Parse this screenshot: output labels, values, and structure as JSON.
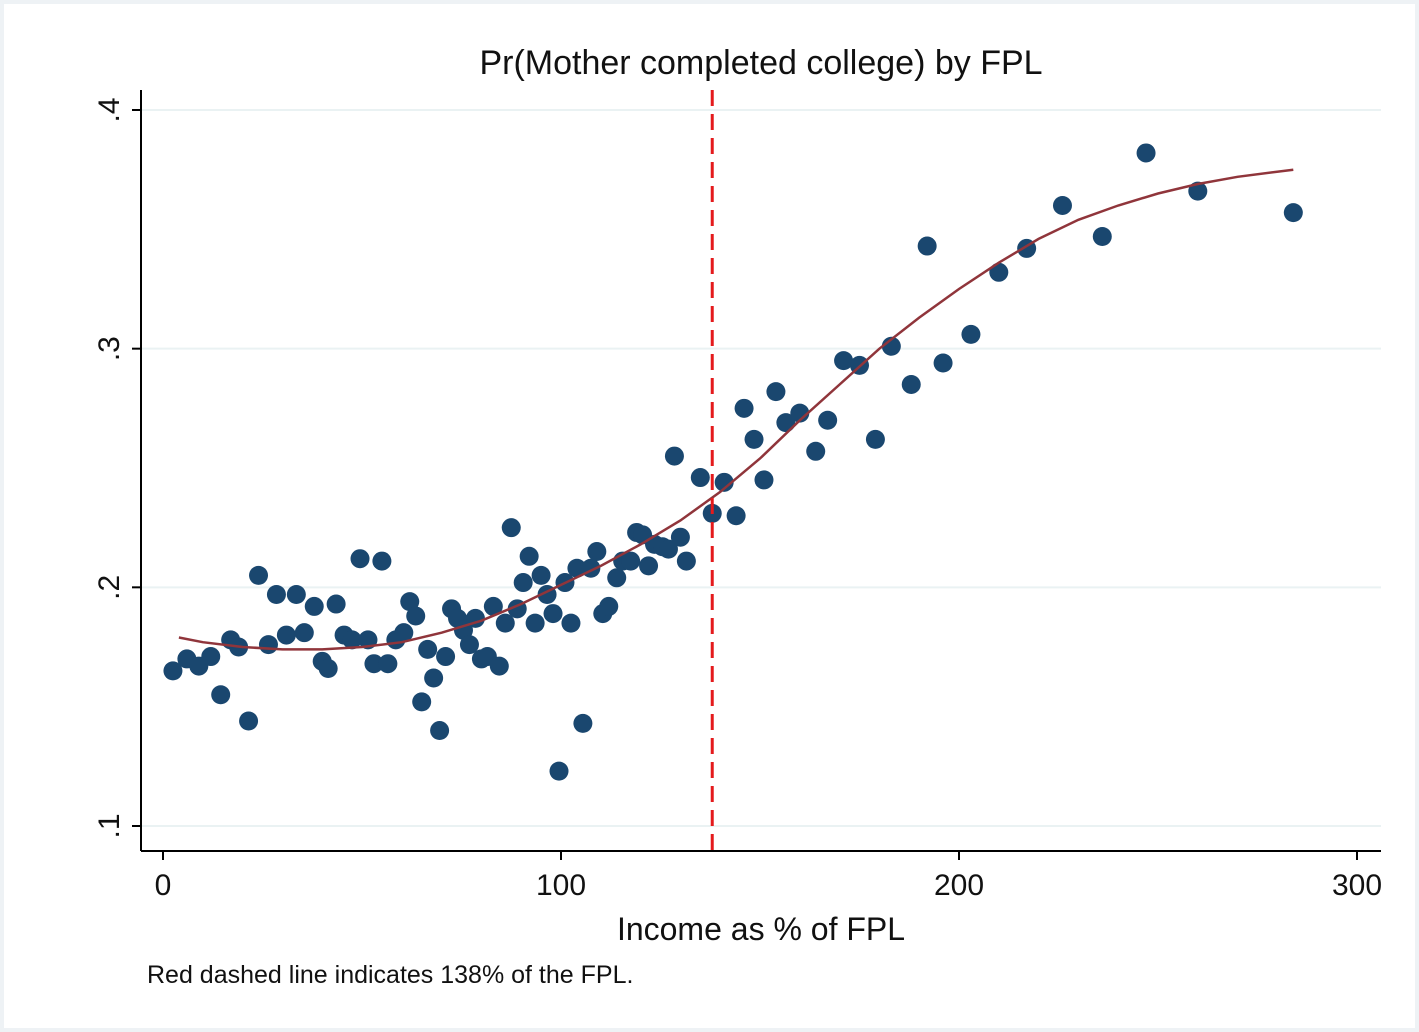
{
  "chart_data": {
    "type": "scatter",
    "title": "Pr(Mother completed college) by FPL",
    "xlabel": "Income as % of FPL",
    "ylabel": "",
    "note": "Red dashed line indicates 138% of the FPL.",
    "xlim": [
      0,
      300
    ],
    "ylim": [
      0.1,
      0.4
    ],
    "x_ticks": [
      {
        "value": 0,
        "label": "0"
      },
      {
        "value": 100,
        "label": "100"
      },
      {
        "value": 200,
        "label": "200"
      },
      {
        "value": 300,
        "label": "300"
      }
    ],
    "y_ticks": [
      {
        "value": 0.1,
        "label": ".1"
      },
      {
        "value": 0.2,
        "label": ".2"
      },
      {
        "value": 0.3,
        "label": ".3"
      },
      {
        "value": 0.4,
        "label": ".4"
      }
    ],
    "grid": "horizontal",
    "vline": {
      "x": 138,
      "color": "#e41a1c",
      "style": "dashed"
    },
    "colors": {
      "points": "#1a476f",
      "fit_line": "#90353b",
      "vline": "#e41a1c",
      "grid": "#eaf2f3"
    },
    "series": [
      {
        "kind": "points",
        "points": [
          [
            2.5,
            0.165
          ],
          [
            6,
            0.17
          ],
          [
            9,
            0.167
          ],
          [
            12,
            0.171
          ],
          [
            14.5,
            0.155
          ],
          [
            17,
            0.178
          ],
          [
            19,
            0.175
          ],
          [
            21.5,
            0.144
          ],
          [
            24,
            0.205
          ],
          [
            26.5,
            0.176
          ],
          [
            28.5,
            0.197
          ],
          [
            31,
            0.18
          ],
          [
            33.5,
            0.197
          ],
          [
            35.5,
            0.181
          ],
          [
            38,
            0.192
          ],
          [
            40,
            0.169
          ],
          [
            41.5,
            0.166
          ],
          [
            43.5,
            0.193
          ],
          [
            45.5,
            0.18
          ],
          [
            47.5,
            0.178
          ],
          [
            49.5,
            0.212
          ],
          [
            51.5,
            0.178
          ],
          [
            53,
            0.168
          ],
          [
            55,
            0.211
          ],
          [
            56.5,
            0.168
          ],
          [
            58.5,
            0.178
          ],
          [
            60.5,
            0.181
          ],
          [
            62,
            0.194
          ],
          [
            63.5,
            0.188
          ],
          [
            65,
            0.152
          ],
          [
            66.5,
            0.174
          ],
          [
            68,
            0.162
          ],
          [
            69.5,
            0.14
          ],
          [
            71,
            0.171
          ],
          [
            72.5,
            0.191
          ],
          [
            74,
            0.187
          ],
          [
            75.5,
            0.182
          ],
          [
            77,
            0.176
          ],
          [
            78.5,
            0.187
          ],
          [
            80,
            0.17
          ],
          [
            81.5,
            0.171
          ],
          [
            83,
            0.192
          ],
          [
            84.5,
            0.167
          ],
          [
            86,
            0.185
          ],
          [
            87.5,
            0.225
          ],
          [
            89,
            0.191
          ],
          [
            90.5,
            0.202
          ],
          [
            92,
            0.213
          ],
          [
            93.5,
            0.185
          ],
          [
            95,
            0.205
          ],
          [
            96.5,
            0.197
          ],
          [
            98,
            0.189
          ],
          [
            99.5,
            0.123
          ],
          [
            101,
            0.202
          ],
          [
            102.5,
            0.185
          ],
          [
            104,
            0.208
          ],
          [
            105.5,
            0.143
          ],
          [
            107.5,
            0.208
          ],
          [
            109,
            0.215
          ],
          [
            110.5,
            0.189
          ],
          [
            112,
            0.192
          ],
          [
            114,
            0.204
          ],
          [
            115.5,
            0.211
          ],
          [
            117.5,
            0.211
          ],
          [
            119,
            0.223
          ],
          [
            120.5,
            0.222
          ],
          [
            122,
            0.209
          ],
          [
            123.5,
            0.218
          ],
          [
            125.5,
            0.217
          ],
          [
            127,
            0.216
          ],
          [
            128.5,
            0.255
          ],
          [
            130,
            0.221
          ],
          [
            131.5,
            0.211
          ],
          [
            135,
            0.246
          ],
          [
            138,
            0.231
          ],
          [
            141,
            0.244
          ],
          [
            144,
            0.23
          ],
          [
            146,
            0.275
          ],
          [
            148.5,
            0.262
          ],
          [
            151,
            0.245
          ],
          [
            154,
            0.282
          ],
          [
            156.5,
            0.269
          ],
          [
            160,
            0.273
          ],
          [
            164,
            0.257
          ],
          [
            167,
            0.27
          ],
          [
            171,
            0.295
          ],
          [
            175,
            0.293
          ],
          [
            179,
            0.262
          ],
          [
            183,
            0.301
          ],
          [
            188,
            0.285
          ],
          [
            192,
            0.343
          ],
          [
            196,
            0.294
          ],
          [
            203,
            0.306
          ],
          [
            210,
            0.332
          ],
          [
            217,
            0.342
          ],
          [
            226,
            0.36
          ],
          [
            236,
            0.347
          ],
          [
            247,
            0.382
          ],
          [
            260,
            0.366
          ],
          [
            284,
            0.357
          ]
        ]
      },
      {
        "kind": "fit",
        "points": [
          [
            4,
            0.179
          ],
          [
            10,
            0.177
          ],
          [
            20,
            0.175
          ],
          [
            30,
            0.174
          ],
          [
            40,
            0.174
          ],
          [
            50,
            0.175
          ],
          [
            60,
            0.177
          ],
          [
            70,
            0.181
          ],
          [
            80,
            0.186
          ],
          [
            90,
            0.193
          ],
          [
            100,
            0.201
          ],
          [
            110,
            0.209
          ],
          [
            120,
            0.218
          ],
          [
            130,
            0.228
          ],
          [
            140,
            0.24
          ],
          [
            150,
            0.254
          ],
          [
            160,
            0.27
          ],
          [
            170,
            0.285
          ],
          [
            180,
            0.3
          ],
          [
            190,
            0.313
          ],
          [
            200,
            0.325
          ],
          [
            210,
            0.336
          ],
          [
            220,
            0.346
          ],
          [
            230,
            0.354
          ],
          [
            240,
            0.36
          ],
          [
            250,
            0.365
          ],
          [
            260,
            0.369
          ],
          [
            270,
            0.372
          ],
          [
            284,
            0.375
          ]
        ]
      }
    ]
  }
}
